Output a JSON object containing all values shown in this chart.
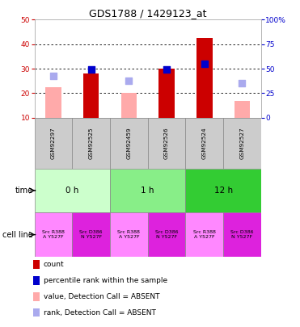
{
  "title": "GDS1788 / 1429123_at",
  "samples": [
    "GSM92297",
    "GSM92525",
    "GSM92459",
    "GSM92526",
    "GSM92524",
    "GSM92527"
  ],
  "bar_values": [
    22.3,
    28.2,
    20.0,
    30.0,
    42.5,
    17.0
  ],
  "bar_absent": [
    true,
    false,
    true,
    false,
    false,
    true
  ],
  "rank_values": [
    27.0,
    29.8,
    25.0,
    29.8,
    32.0,
    24.0
  ],
  "rank_absent": [
    true,
    false,
    true,
    false,
    false,
    true
  ],
  "ylim_left": [
    10,
    50
  ],
  "ylim_right": [
    0,
    100
  ],
  "yticks_left": [
    10,
    20,
    30,
    40,
    50
  ],
  "yticks_right": [
    0,
    25,
    50,
    75,
    100
  ],
  "ytick_right_labels": [
    "0",
    "25",
    "50",
    "75",
    "100%"
  ],
  "color_bar_present": "#cc0000",
  "color_bar_absent": "#ffaaaa",
  "color_rank_present": "#0000cc",
  "color_rank_absent": "#aaaaee",
  "left_tick_color": "#cc0000",
  "right_tick_color": "#0000cc",
  "time_groups": [
    {
      "label": "0 h",
      "cols": [
        0,
        1
      ],
      "color": "#ccffcc"
    },
    {
      "label": "1 h",
      "cols": [
        2,
        3
      ],
      "color": "#88ee88"
    },
    {
      "label": "12 h",
      "cols": [
        4,
        5
      ],
      "color": "#33cc33"
    }
  ],
  "cell_lines": [
    {
      "label": "Src R388\nA Y527F",
      "color": "#ff88ff"
    },
    {
      "label": "Src D386\nN Y527F",
      "color": "#dd22dd"
    },
    {
      "label": "Src R388\nA Y527F",
      "color": "#ff88ff"
    },
    {
      "label": "Src D386\nN Y527F",
      "color": "#dd22dd"
    },
    {
      "label": "Src R388\nA Y527F",
      "color": "#ff88ff"
    },
    {
      "label": "Src D386\nN Y527F",
      "color": "#dd22dd"
    }
  ],
  "bar_width": 0.42,
  "rank_marker_size": 40,
  "background_color": "#ffffff",
  "tick_fontsize": 6.5,
  "title_fontsize": 9,
  "sample_fontsize": 5.2,
  "legend_fontsize": 6.5,
  "table_fontsize": 7.5,
  "cell_fontsize": 4.5
}
